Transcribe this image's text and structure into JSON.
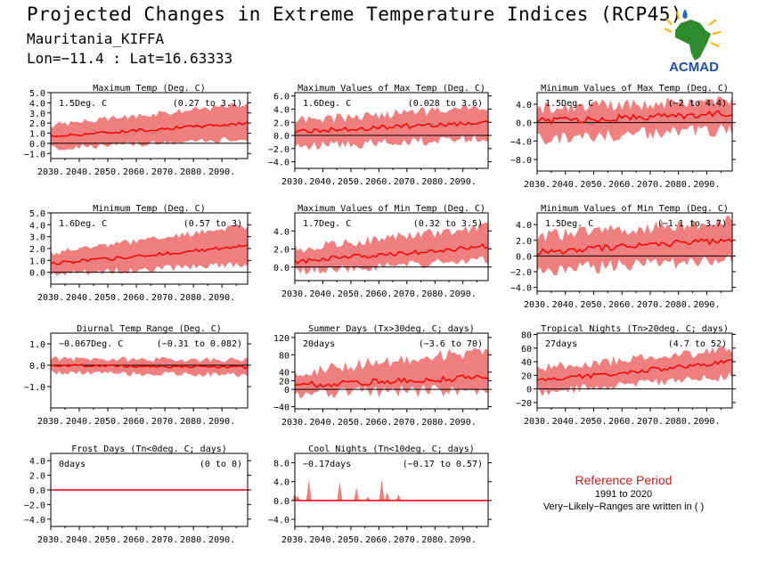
{
  "header": {
    "title": "Projected Changes in Extreme Temperature Indices (RCP45)",
    "location": "Mauritania_KIFFA",
    "coords": "Lon=−11.4 : Lat=16.63333"
  },
  "logo": {
    "text": "ACMAD",
    "icon": "africa-map-logo"
  },
  "legend": {
    "title": "Reference Period",
    "years": "1991 to 2020",
    "note": "Very−Likely−Ranges are written in ( )"
  },
  "colors": {
    "band": "#f08080",
    "line": "#ff0000",
    "zero": "#000000",
    "ref_title": "#d01a1a"
  },
  "chart_data": [
    {
      "type": "area",
      "title": "Maximum Temp (Deg. C)",
      "change": "1.5Deg. C",
      "range": "(0.27 to 3.1)",
      "x": [
        2030,
        2099
      ],
      "ylim": [
        -1.5,
        5.0
      ],
      "yticks": [
        -1.0,
        0.0,
        1.0,
        2.0,
        3.0,
        4.0,
        5.0
      ],
      "ytick_labels": [
        "−1.0",
        "0.0",
        "1.0",
        "2.0",
        "3.0",
        "4.0",
        "5.0"
      ],
      "xtick_labels": [
        "2030.",
        "2040.",
        "2050.",
        "2060.",
        "2070.",
        "2080.",
        "2090."
      ],
      "median": [
        0.7,
        2.0
      ],
      "low": [
        -0.5,
        0.4
      ],
      "high": [
        1.8,
        3.9
      ],
      "noise": 0.25
    },
    {
      "type": "area",
      "title": "Maximum Values of Max Temp (Deg. C)",
      "change": "1.6Deg. C",
      "range": "(0.028 to 3.6)",
      "x": [
        2030,
        2099
      ],
      "ylim": [
        -5.0,
        6.5
      ],
      "yticks": [
        -4.0,
        -2.0,
        0.0,
        2.0,
        4.0,
        6.0
      ],
      "ytick_labels": [
        "−4.0",
        "−2.0",
        "0.0",
        "2.0",
        "4.0",
        "6.0"
      ],
      "xtick_labels": [
        "2030.",
        "2040.",
        "2050.",
        "2060.",
        "2070.",
        "2080.",
        "2090."
      ],
      "median": [
        0.6,
        2.0
      ],
      "low": [
        -1.8,
        -0.3
      ],
      "high": [
        2.2,
        4.3
      ],
      "noise": 0.6
    },
    {
      "type": "area",
      "title": "Minimum Values of Max Temp (Deg. C)",
      "change": "1.5Deg. C",
      "range": "(−2 to 4.4)",
      "x": [
        2030,
        2099
      ],
      "ylim": [
        -10.5,
        6.5
      ],
      "yticks": [
        -8.0,
        -4.0,
        0.0,
        4.0
      ],
      "ytick_labels": [
        "−8.0",
        "−4.0",
        "0.0",
        "4.0"
      ],
      "xtick_labels": [
        "2030.",
        "2040.",
        "2050.",
        "2060.",
        "2070.",
        "2080.",
        "2090."
      ],
      "median": [
        0.3,
        2.0
      ],
      "low": [
        -3.5,
        -1.5
      ],
      "high": [
        3.0,
        5.0
      ],
      "noise": 1.2
    },
    {
      "type": "area",
      "title": "Minimum Temp (Deg. C)",
      "change": "1.6Deg. C",
      "range": "(0.57 to 3)",
      "x": [
        2030,
        2099
      ],
      "ylim": [
        -1.0,
        5.0
      ],
      "yticks": [
        0.0,
        1.0,
        2.0,
        3.0,
        4.0,
        5.0
      ],
      "ytick_labels": [
        "0.0",
        "1.0",
        "2.0",
        "3.0",
        "4.0",
        "5.0"
      ],
      "xtick_labels": [
        "2030.",
        "2040.",
        "2050.",
        "2060.",
        "2070.",
        "2080.",
        "2090."
      ],
      "median": [
        0.7,
        2.2
      ],
      "low": [
        -0.2,
        0.7
      ],
      "high": [
        1.7,
        3.9
      ],
      "noise": 0.25
    },
    {
      "type": "area",
      "title": "Maximum Values of Min Temp (Deg. C)",
      "change": "1.7Deg. C",
      "range": "(0.32 to 3.5)",
      "x": [
        2030,
        2099
      ],
      "ylim": [
        -1.5,
        6.0
      ],
      "yticks": [
        0.0,
        2.0,
        4.0
      ],
      "ytick_labels": [
        "0.0",
        "2.0",
        "4.0"
      ],
      "xtick_labels": [
        "2030.",
        "2040.",
        "2050.",
        "2060.",
        "2070.",
        "2080.",
        "2090."
      ],
      "median": [
        0.6,
        2.3
      ],
      "low": [
        -0.5,
        0.8
      ],
      "high": [
        2.0,
        4.5
      ],
      "noise": 0.45
    },
    {
      "type": "area",
      "title": "Minimum Values of Min Temp (Deg. C)",
      "change": "1.5Deg. C",
      "range": "(−1.1 to 3.7)",
      "x": [
        2030,
        2099
      ],
      "ylim": [
        -4.5,
        5.5
      ],
      "yticks": [
        -4.0,
        -2.0,
        0.0,
        2.0,
        4.0
      ],
      "ytick_labels": [
        "−4.0",
        "−2.0",
        "0.0",
        "2.0",
        "4.0"
      ],
      "xtick_labels": [
        "2030.",
        "2040.",
        "2050.",
        "2060.",
        "2070.",
        "2080.",
        "2090."
      ],
      "median": [
        0.5,
        2.1
      ],
      "low": [
        -1.8,
        -0.5
      ],
      "high": [
        2.5,
        4.5
      ],
      "noise": 0.7
    },
    {
      "type": "area",
      "title": "Diurnal Temp Range (Deg. C)",
      "change": "−0.067Deg. C",
      "range": "(−0.31 to 0.082)",
      "x": [
        2030,
        2099
      ],
      "ylim": [
        -2.0,
        1.5
      ],
      "yticks": [
        -1.0,
        0.0,
        1.0
      ],
      "ytick_labels": [
        "−1.0",
        "0.0",
        "1.0"
      ],
      "xtick_labels": [
        "2030.",
        "2040.",
        "2050.",
        "2060.",
        "2070.",
        "2080.",
        "2090."
      ],
      "median": [
        0.0,
        -0.1
      ],
      "low": [
        -0.35,
        -0.45
      ],
      "high": [
        0.3,
        0.25
      ],
      "noise": 0.1
    },
    {
      "type": "area",
      "title": "Summer Days (Tx>30deg. C; days)",
      "change": "20days",
      "range": "(−3.6 to 70)",
      "x": [
        2030,
        2099
      ],
      "ylim": [
        -45,
        130
      ],
      "yticks": [
        -40,
        0,
        20,
        40,
        80,
        120
      ],
      "ytick_labels": [
        "−40",
        "0",
        "20",
        "40",
        "80",
        "120"
      ],
      "xtick_labels": [
        "2030.",
        "2040.",
        "2050.",
        "2060.",
        "2070.",
        "2080.",
        "2090."
      ],
      "median": [
        10,
        28
      ],
      "low": [
        -10,
        0
      ],
      "high": [
        40,
        90
      ],
      "noise": 12
    },
    {
      "type": "area",
      "title": "Tropical Nights (Tn>20deg. C; days)",
      "change": "27days",
      "range": "(4.7 to 52)",
      "x": [
        2030,
        2099
      ],
      "ylim": [
        -28,
        82
      ],
      "yticks": [
        -20,
        0,
        20,
        40,
        60,
        80
      ],
      "ytick_labels": [
        "−20",
        "0",
        "20",
        "40",
        "60",
        "80"
      ],
      "xtick_labels": [
        "2030.",
        "2040.",
        "2050.",
        "2060.",
        "2070.",
        "2080.",
        "2090."
      ],
      "median": [
        12,
        40
      ],
      "low": [
        -5,
        18
      ],
      "high": [
        30,
        58
      ],
      "noise": 6
    },
    {
      "type": "area",
      "title": "Frost Days (Tn<0deg. C; days)",
      "change": "0days",
      "range": "(0 to 0)",
      "x": [
        2030,
        2099
      ],
      "ylim": [
        -5.0,
        5.0
      ],
      "yticks": [
        -4.0,
        -2.0,
        0.0,
        2.0,
        4.0
      ],
      "ytick_labels": [
        "−4.0",
        "−2.0",
        "0.0",
        "2.0",
        "4.0"
      ],
      "xtick_labels": [
        "2030.",
        "2040.",
        "2050.",
        "2060.",
        "2070.",
        "2080.",
        "2090."
      ],
      "median": [
        0,
        0
      ],
      "low": [
        0,
        0
      ],
      "high": [
        0,
        0
      ],
      "noise": 0
    },
    {
      "type": "area",
      "title": "Cool Nights (Tn<10deg. C; days)",
      "change": "−0.17days",
      "range": "(−0.17 to 0.57)",
      "x": [
        2030,
        2099
      ],
      "ylim": [
        -5.5,
        10.0
      ],
      "yticks": [
        -4.0,
        0.0,
        4.0,
        8.0
      ],
      "ytick_labels": [
        "−4.0",
        "0.0",
        "4.0",
        "8.0"
      ],
      "xtick_labels": [
        "2030.",
        "2040.",
        "2050.",
        "2060.",
        "2070.",
        "2080.",
        "2090."
      ],
      "median": [
        0,
        0
      ],
      "low": [
        0,
        0
      ],
      "high": [
        0,
        0
      ],
      "noise": 0,
      "spikes": [
        [
          2030,
          1.4
        ],
        [
          2031,
          1.0
        ],
        [
          2035,
          4.5
        ],
        [
          2046,
          4.0
        ],
        [
          2052,
          2.8
        ],
        [
          2056,
          0.8
        ],
        [
          2061,
          4.5
        ],
        [
          2063,
          1.8
        ],
        [
          2067,
          1.3
        ]
      ]
    }
  ]
}
